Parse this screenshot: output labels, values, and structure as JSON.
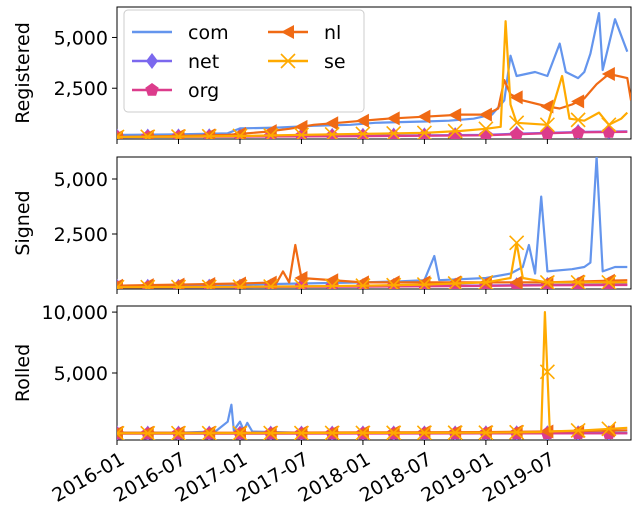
{
  "chart_data": [
    {
      "type": "line",
      "panel": "registered",
      "ylabel": "Registered",
      "ylim": [
        0,
        6500
      ],
      "yticks": [
        2500,
        5000
      ],
      "ytick_labels": [
        "2,500",
        "5,000"
      ],
      "legend": {
        "placement": "top-left",
        "columns": 2
      },
      "series": [
        {
          "name": "com",
          "color": "#6495ED",
          "marker": "none",
          "points": [
            [
              2016.0,
              200
            ],
            [
              2016.5,
              230
            ],
            [
              2016.9,
              280
            ],
            [
              2017.0,
              520
            ],
            [
              2017.3,
              560
            ],
            [
              2017.6,
              650
            ],
            [
              2017.9,
              700
            ],
            [
              2018.1,
              800
            ],
            [
              2018.3,
              830
            ],
            [
              2018.5,
              860
            ],
            [
              2018.7,
              900
            ],
            [
              2018.9,
              1000
            ],
            [
              2019.05,
              1200
            ],
            [
              2019.15,
              1900
            ],
            [
              2019.2,
              4100
            ],
            [
              2019.25,
              3100
            ],
            [
              2019.4,
              3300
            ],
            [
              2019.5,
              3100
            ],
            [
              2019.6,
              4700
            ],
            [
              2019.65,
              3300
            ],
            [
              2019.75,
              3000
            ],
            [
              2019.8,
              3300
            ],
            [
              2019.85,
              4200
            ],
            [
              2019.92,
              6200
            ],
            [
              2019.95,
              3400
            ],
            [
              2020.05,
              5900
            ],
            [
              2020.15,
              4300
            ]
          ]
        },
        {
          "name": "net",
          "color": "#7B68EE",
          "marker": "diamond",
          "points": [
            [
              2016.0,
              120
            ],
            [
              2016.5,
              130
            ],
            [
              2017.0,
              140
            ],
            [
              2017.5,
              150
            ],
            [
              2018.0,
              160
            ],
            [
              2018.5,
              180
            ],
            [
              2019.0,
              200
            ],
            [
              2019.2,
              250
            ],
            [
              2019.5,
              300
            ],
            [
              2019.8,
              350
            ],
            [
              2020.15,
              380
            ]
          ]
        },
        {
          "name": "org",
          "color": "#DC3C8C",
          "marker": "pentagon",
          "points": [
            [
              2016.0,
              100
            ],
            [
              2016.5,
              110
            ],
            [
              2017.0,
              120
            ],
            [
              2017.5,
              130
            ],
            [
              2018.0,
              140
            ],
            [
              2018.5,
              160
            ],
            [
              2019.0,
              180
            ],
            [
              2019.2,
              220
            ],
            [
              2019.5,
              280
            ],
            [
              2019.8,
              330
            ],
            [
              2020.15,
              350
            ]
          ]
        },
        {
          "name": "nl",
          "color": "#F06A14",
          "marker": "triangle-left",
          "points": [
            [
              2016.0,
              100
            ],
            [
              2016.5,
              150
            ],
            [
              2016.9,
              200
            ],
            [
              2017.2,
              350
            ],
            [
              2017.4,
              500
            ],
            [
              2017.6,
              700
            ],
            [
              2017.8,
              800
            ],
            [
              2018.0,
              900
            ],
            [
              2018.2,
              1000
            ],
            [
              2018.5,
              1100
            ],
            [
              2018.8,
              1200
            ],
            [
              2019.0,
              1200
            ],
            [
              2019.1,
              1500
            ],
            [
              2019.15,
              2900
            ],
            [
              2019.2,
              2200
            ],
            [
              2019.3,
              1900
            ],
            [
              2019.5,
              1600
            ],
            [
              2019.6,
              1500
            ],
            [
              2019.7,
              1700
            ],
            [
              2019.8,
              2000
            ],
            [
              2019.9,
              2700
            ],
            [
              2020.0,
              3200
            ],
            [
              2020.15,
              3000
            ],
            [
              2020.18,
              1900
            ]
          ]
        },
        {
          "name": "se",
          "color": "#FFAA00",
          "marker": "x",
          "points": [
            [
              2016.0,
              100
            ],
            [
              2016.5,
              120
            ],
            [
              2017.0,
              150
            ],
            [
              2017.5,
              200
            ],
            [
              2018.0,
              250
            ],
            [
              2018.5,
              300
            ],
            [
              2018.8,
              400
            ],
            [
              2019.0,
              500
            ],
            [
              2019.12,
              600
            ],
            [
              2019.16,
              5800
            ],
            [
              2019.2,
              1700
            ],
            [
              2019.25,
              800
            ],
            [
              2019.5,
              700
            ],
            [
              2019.62,
              3100
            ],
            [
              2019.68,
              1000
            ],
            [
              2019.8,
              900
            ],
            [
              2019.92,
              1300
            ],
            [
              2020.0,
              700
            ],
            [
              2020.1,
              1000
            ],
            [
              2020.15,
              1300
            ]
          ]
        }
      ]
    },
    {
      "type": "line",
      "panel": "signed",
      "ylabel": "Signed",
      "ylim": [
        0,
        6000
      ],
      "yticks": [
        2500,
        5000
      ],
      "ytick_labels": [
        "2,500",
        "5,000"
      ],
      "series": [
        {
          "name": "com",
          "color": "#6495ED",
          "marker": "none",
          "points": [
            [
              2016.0,
              100
            ],
            [
              2016.5,
              120
            ],
            [
              2017.0,
              200
            ],
            [
              2017.5,
              250
            ],
            [
              2018.0,
              300
            ],
            [
              2018.3,
              350
            ],
            [
              2018.5,
              400
            ],
            [
              2018.58,
              1500
            ],
            [
              2018.62,
              400
            ],
            [
              2019.0,
              500
            ],
            [
              2019.2,
              700
            ],
            [
              2019.3,
              1000
            ],
            [
              2019.35,
              2000
            ],
            [
              2019.4,
              700
            ],
            [
              2019.45,
              4200
            ],
            [
              2019.5,
              800
            ],
            [
              2019.7,
              900
            ],
            [
              2019.8,
              1000
            ],
            [
              2019.85,
              1200
            ],
            [
              2019.9,
              6000
            ],
            [
              2019.95,
              800
            ],
            [
              2020.05,
              1000
            ],
            [
              2020.15,
              1000
            ]
          ]
        },
        {
          "name": "net",
          "color": "#7B68EE",
          "marker": "diamond",
          "points": [
            [
              2016.0,
              100
            ],
            [
              2017.0,
              110
            ],
            [
              2018.0,
              130
            ],
            [
              2019.0,
              160
            ],
            [
              2019.5,
              190
            ],
            [
              2020.15,
              200
            ]
          ]
        },
        {
          "name": "org",
          "color": "#DC3C8C",
          "marker": "pentagon",
          "points": [
            [
              2016.0,
              80
            ],
            [
              2017.0,
              90
            ],
            [
              2018.0,
              110
            ],
            [
              2019.0,
              140
            ],
            [
              2019.5,
              170
            ],
            [
              2020.15,
              180
            ]
          ]
        },
        {
          "name": "nl",
          "color": "#F06A14",
          "marker": "triangle-left",
          "points": [
            [
              2016.0,
              150
            ],
            [
              2016.5,
              200
            ],
            [
              2017.0,
              250
            ],
            [
              2017.3,
              300
            ],
            [
              2017.35,
              800
            ],
            [
              2017.4,
              300
            ],
            [
              2017.45,
              2000
            ],
            [
              2017.5,
              500
            ],
            [
              2018.0,
              300
            ],
            [
              2018.5,
              300
            ],
            [
              2019.0,
              300
            ],
            [
              2019.5,
              300
            ],
            [
              2020.15,
              400
            ]
          ]
        },
        {
          "name": "se",
          "color": "#FFAA00",
          "marker": "x",
          "points": [
            [
              2016.0,
              80
            ],
            [
              2017.0,
              100
            ],
            [
              2017.5,
              120
            ],
            [
              2018.0,
              150
            ],
            [
              2018.5,
              200
            ],
            [
              2019.0,
              300
            ],
            [
              2019.2,
              500
            ],
            [
              2019.25,
              2100
            ],
            [
              2019.3,
              500
            ],
            [
              2019.5,
              300
            ],
            [
              2020.15,
              300
            ]
          ]
        }
      ]
    },
    {
      "type": "line",
      "panel": "rolled",
      "ylabel": "Rolled",
      "ylim": [
        -500,
        10500
      ],
      "yticks": [
        5000,
        10000
      ],
      "ytick_labels": [
        "5,000",
        "10,000"
      ],
      "series": [
        {
          "name": "com",
          "color": "#6495ED",
          "marker": "none",
          "points": [
            [
              2016.0,
              100
            ],
            [
              2016.5,
              100
            ],
            [
              2016.8,
              200
            ],
            [
              2016.9,
              1000
            ],
            [
              2016.93,
              2400
            ],
            [
              2016.95,
              300
            ],
            [
              2017.0,
              1000
            ],
            [
              2017.03,
              300
            ],
            [
              2017.06,
              900
            ],
            [
              2017.1,
              200
            ],
            [
              2017.5,
              100
            ],
            [
              2018.0,
              100
            ],
            [
              2019.0,
              100
            ],
            [
              2020.15,
              100
            ]
          ]
        },
        {
          "name": "net",
          "color": "#7B68EE",
          "marker": "diamond",
          "points": [
            [
              2016.0,
              30
            ],
            [
              2017.0,
              30
            ],
            [
              2018.0,
              40
            ],
            [
              2019.0,
              50
            ],
            [
              2020.15,
              60
            ]
          ]
        },
        {
          "name": "org",
          "color": "#DC3C8C",
          "marker": "pentagon",
          "points": [
            [
              2016.0,
              20
            ],
            [
              2017.0,
              20
            ],
            [
              2018.0,
              30
            ],
            [
              2019.0,
              40
            ],
            [
              2020.15,
              50
            ]
          ]
        },
        {
          "name": "nl",
          "color": "#F06A14",
          "marker": "triangle-left",
          "points": [
            [
              2016.0,
              100
            ],
            [
              2017.0,
              100
            ],
            [
              2018.0,
              120
            ],
            [
              2019.0,
              150
            ],
            [
              2019.5,
              200
            ],
            [
              2020.15,
              300
            ]
          ]
        },
        {
          "name": "se",
          "color": "#FFAA00",
          "marker": "x",
          "points": [
            [
              2016.0,
              50
            ],
            [
              2017.0,
              60
            ],
            [
              2018.0,
              80
            ],
            [
              2019.0,
              100
            ],
            [
              2019.45,
              150
            ],
            [
              2019.48,
              10000
            ],
            [
              2019.52,
              200
            ],
            [
              2019.8,
              300
            ],
            [
              2020.15,
              500
            ]
          ]
        }
      ]
    }
  ],
  "x_axis": {
    "xlim": [
      2016.0,
      2020.18
    ],
    "ticks": [
      2016.0,
      2016.5,
      2017.0,
      2017.5,
      2018.0,
      2018.5,
      2019.0,
      2019.5
    ],
    "tick_labels": [
      "2016-01",
      "2016-07",
      "2017-01",
      "2017-07",
      "2018-01",
      "2018-07",
      "2019-01",
      "2019-07"
    ]
  }
}
